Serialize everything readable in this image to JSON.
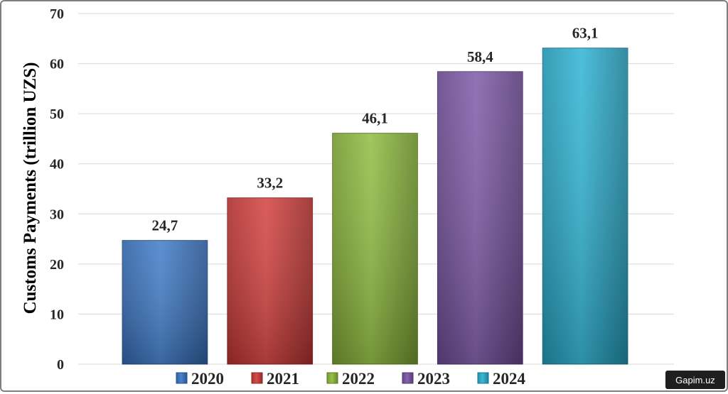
{
  "chart_data": {
    "type": "bar",
    "categories": [
      "2020",
      "2021",
      "2022",
      "2023",
      "2024"
    ],
    "values": [
      24.7,
      33.2,
      46.1,
      58.4,
      63.1
    ],
    "data_labels": [
      "24,7",
      "33,2",
      "46,1",
      "58,4",
      "63,1"
    ],
    "title": "",
    "xlabel": "",
    "ylabel": "Customs Payments (trillion UZS)",
    "ylim": [
      0,
      70
    ],
    "yticks": [
      0,
      10,
      20,
      30,
      40,
      50,
      60,
      70
    ],
    "grid": true,
    "legend_position": "bottom",
    "legend": [
      "2020",
      "2021",
      "2022",
      "2023",
      "2024"
    ],
    "colors": [
      "#3a78c8",
      "#d23b38",
      "#8dbb3a",
      "#7b55a6",
      "#29b2d3"
    ]
  },
  "watermark": "Gapim.uz"
}
